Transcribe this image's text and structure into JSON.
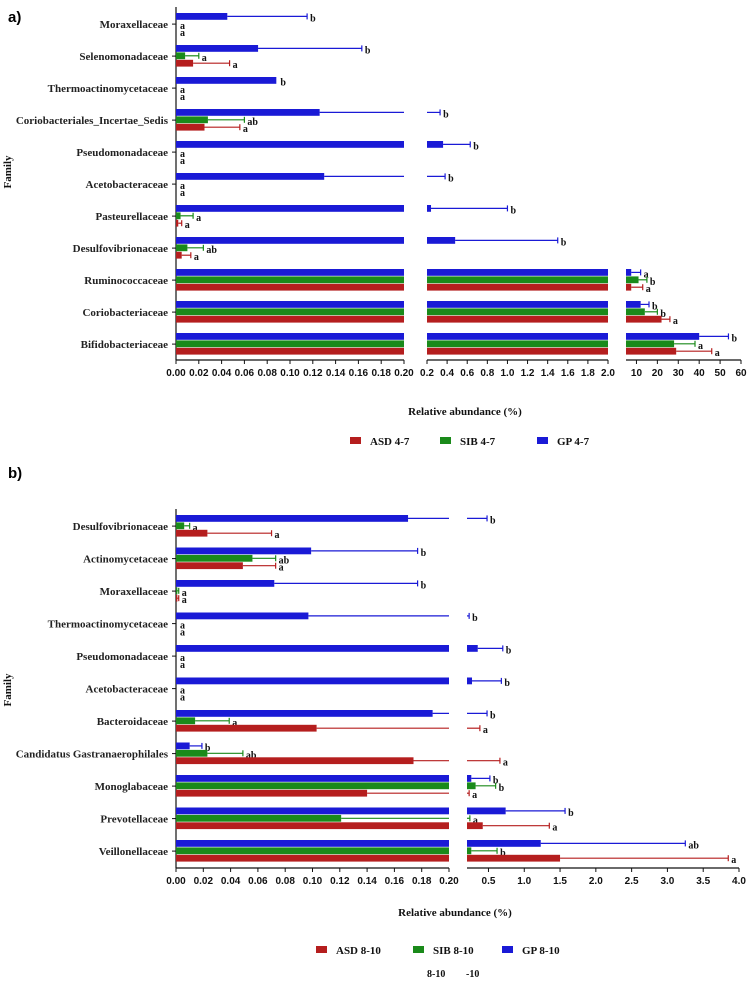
{
  "colors": {
    "ASD": "#b51e1e",
    "SIB": "#1a8a1a",
    "GP": "#1a1ad6",
    "axis": "#111111"
  },
  "chart_data": [
    {
      "panel": "a)",
      "type": "bar",
      "orientation": "horizontal",
      "ylabel": "Family",
      "xlabel": "Relative abundance (%)",
      "axis_segments": [
        {
          "range": [
            0,
            0.2
          ],
          "ticks": [
            "0.00",
            "0.02",
            "0.04",
            "0.06",
            "0.08",
            "0.10",
            "0.12",
            "0.14",
            "0.16",
            "0.18",
            "0.20"
          ]
        },
        {
          "range": [
            0.2,
            2.0
          ],
          "ticks": [
            "0.2",
            "0.4",
            "0.6",
            "0.8",
            "1.0",
            "1.2",
            "1.4",
            "1.6",
            "1.8",
            "2.0"
          ]
        },
        {
          "range": [
            5,
            60
          ],
          "ticks": [
            "10",
            "20",
            "30",
            "40",
            "50",
            "60"
          ]
        }
      ],
      "series_names": [
        "ASD 4-7",
        "SIB 4-7",
        "GP 4-7"
      ],
      "categories": [
        {
          "name": "Moraxellaceae",
          "bars": [
            {
              "v": 0,
              "e": 0,
              "sig": "a"
            },
            {
              "v": 0,
              "e": 0,
              "sig": "a"
            },
            {
              "v": 0.045,
              "e": 0.115,
              "sig": "b"
            }
          ]
        },
        {
          "name": "Selenomonadaceae",
          "bars": [
            {
              "v": 0.015,
              "e": 0.047,
              "sig": "a"
            },
            {
              "v": 0.008,
              "e": 0.02,
              "sig": "a"
            },
            {
              "v": 0.072,
              "e": 0.163,
              "sig": "b"
            }
          ]
        },
        {
          "name": "Thermoactinomycetaceae",
          "bars": [
            {
              "v": 0,
              "e": 0,
              "sig": "a"
            },
            {
              "v": 0,
              "e": 0,
              "sig": "a"
            },
            {
              "v": 0.088,
              "e": 0.088,
              "sig": "b"
            }
          ]
        },
        {
          "name": "Coriobacteriales_Incertae_Sedis",
          "bars": [
            {
              "v": 0.025,
              "e": 0.056,
              "sig": "a"
            },
            {
              "v": 0.028,
              "e": 0.06,
              "sig": "ab"
            },
            {
              "v": 0.126,
              "e": 0.33,
              "sig": "b"
            }
          ]
        },
        {
          "name": "Pseudomonadaceae",
          "bars": [
            {
              "v": 0,
              "e": 0,
              "sig": "a"
            },
            {
              "v": 0,
              "e": 0,
              "sig": "a"
            },
            {
              "v": 0.36,
              "e": 0.63,
              "sig": "b"
            }
          ]
        },
        {
          "name": "Acetobacteraceae",
          "bars": [
            {
              "v": 0,
              "e": 0,
              "sig": "a"
            },
            {
              "v": 0,
              "e": 0,
              "sig": "a"
            },
            {
              "v": 0.13,
              "e": 0.38,
              "sig": "b"
            }
          ]
        },
        {
          "name": "Pasteurellaceae",
          "bars": [
            {
              "v": 0.002,
              "e": 0.005,
              "sig": "a"
            },
            {
              "v": 0.004,
              "e": 0.015,
              "sig": "a"
            },
            {
              "v": 0.24,
              "e": 1.0,
              "sig": "b"
            }
          ]
        },
        {
          "name": "Desulfovibrionaceae",
          "bars": [
            {
              "v": 0.005,
              "e": 0.013,
              "sig": "a"
            },
            {
              "v": 0.01,
              "e": 0.024,
              "sig": "ab"
            },
            {
              "v": 0.48,
              "e": 1.5,
              "sig": "b"
            }
          ]
        },
        {
          "name": "Ruminococcaceae",
          "bars": [
            {
              "v": 7.5,
              "e": 13,
              "sig": "a"
            },
            {
              "v": 11,
              "e": 15,
              "sig": "b"
            },
            {
              "v": 7.5,
              "e": 12,
              "sig": "a"
            }
          ]
        },
        {
          "name": "Coriobacteriaceae",
          "bars": [
            {
              "v": 22,
              "e": 26,
              "sig": "a"
            },
            {
              "v": 14,
              "e": 20,
              "sig": "b"
            },
            {
              "v": 12,
              "e": 16,
              "sig": "b"
            }
          ]
        },
        {
          "name": "Bifidobacteriaceae",
          "bars": [
            {
              "v": 29,
              "e": 46,
              "sig": "a"
            },
            {
              "v": 28,
              "e": 38,
              "sig": "a"
            },
            {
              "v": 40,
              "e": 54,
              "sig": "b"
            }
          ]
        }
      ]
    },
    {
      "panel": "b)",
      "type": "bar",
      "orientation": "horizontal",
      "ylabel": "Family",
      "xlabel": "Relative abundance (%)",
      "axis_segments": [
        {
          "range": [
            0,
            0.2
          ],
          "ticks": [
            "0.00",
            "0.02",
            "0.04",
            "0.06",
            "0.08",
            "0.10",
            "0.12",
            "0.14",
            "0.16",
            "0.18",
            "0.20"
          ]
        },
        {
          "range": [
            0.2,
            4.0
          ],
          "ticks": [
            "0.5",
            "1.0",
            "1.5",
            "2.0",
            "2.5",
            "3.0",
            "3.5",
            "4.0"
          ]
        }
      ],
      "series_names": [
        "ASD 8-10",
        "SIB 8-10",
        "GP 8-10"
      ],
      "categories": [
        {
          "name": "Desulfovibrionaceae",
          "bars": [
            {
              "v": 0.023,
              "e": 0.07,
              "sig": "a"
            },
            {
              "v": 0.006,
              "e": 0.01,
              "sig": "a"
            },
            {
              "v": 0.17,
              "e": 0.48,
              "sig": "b"
            }
          ]
        },
        {
          "name": "Actinomycetaceae",
          "bars": [
            {
              "v": 0.049,
              "e": 0.073,
              "sig": "a"
            },
            {
              "v": 0.056,
              "e": 0.073,
              "sig": "ab"
            },
            {
              "v": 0.099,
              "e": 0.177,
              "sig": "b"
            }
          ]
        },
        {
          "name": "Moraxellaceae",
          "bars": [
            {
              "v": 0.001,
              "e": 0.002,
              "sig": "a"
            },
            {
              "v": 0.001,
              "e": 0.002,
              "sig": "a"
            },
            {
              "v": 0.072,
              "e": 0.177,
              "sig": "b"
            }
          ]
        },
        {
          "name": "Thermoactinomycetaceae",
          "bars": [
            {
              "v": 0,
              "e": 0,
              "sig": "a"
            },
            {
              "v": 0,
              "e": 0,
              "sig": "a"
            },
            {
              "v": 0.097,
              "e": 0.23,
              "sig": "b"
            }
          ]
        },
        {
          "name": "Pseudomonadaceae",
          "bars": [
            {
              "v": 0,
              "e": 0,
              "sig": "a"
            },
            {
              "v": 0,
              "e": 0,
              "sig": "a"
            },
            {
              "v": 0.35,
              "e": 0.7,
              "sig": "b"
            }
          ]
        },
        {
          "name": "Acetobacteraceae",
          "bars": [
            {
              "v": 0,
              "e": 0,
              "sig": "a"
            },
            {
              "v": 0,
              "e": 0,
              "sig": "a"
            },
            {
              "v": 0.27,
              "e": 0.68,
              "sig": "b"
            }
          ]
        },
        {
          "name": "Bacteroidaceae",
          "bars": [
            {
              "v": 0.103,
              "e": 0.38,
              "sig": "a"
            },
            {
              "v": 0.014,
              "e": 0.039,
              "sig": "a"
            },
            {
              "v": 0.188,
              "e": 0.48,
              "sig": "b"
            }
          ]
        },
        {
          "name": "Candidatus Gastranaerophilales",
          "bars": [
            {
              "v": 0.174,
              "e": 0.66,
              "sig": "a"
            },
            {
              "v": 0.023,
              "e": 0.049,
              "sig": "ab"
            },
            {
              "v": 0.01,
              "e": 0.019,
              "sig": "b"
            }
          ]
        },
        {
          "name": "Monoglabaceae",
          "bars": [
            {
              "v": 0.14,
              "e": 0.23,
              "sig": "a"
            },
            {
              "v": 0.32,
              "e": 0.6,
              "sig": "b"
            },
            {
              "v": 0.26,
              "e": 0.52,
              "sig": "b"
            }
          ]
        },
        {
          "name": "Prevotellaceae",
          "bars": [
            {
              "v": 0.42,
              "e": 1.35,
              "sig": "a"
            },
            {
              "v": 0.121,
              "e": 0.24,
              "sig": "a"
            },
            {
              "v": 0.74,
              "e": 1.57,
              "sig": "b"
            }
          ]
        },
        {
          "name": "Veillonellaceae",
          "bars": [
            {
              "v": 1.5,
              "e": 3.85,
              "sig": "a"
            },
            {
              "v": 0.26,
              "e": 0.62,
              "sig": "b"
            },
            {
              "v": 1.23,
              "e": 3.25,
              "sig": "ab"
            }
          ]
        }
      ]
    }
  ],
  "stray_text": [
    "8-10",
    "-10"
  ]
}
